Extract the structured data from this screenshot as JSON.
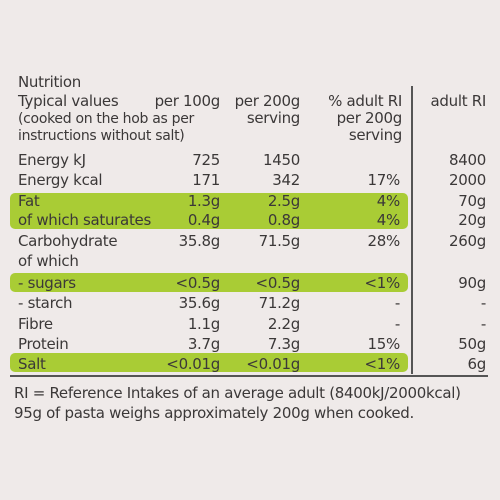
{
  "title": "Nutrition",
  "header": {
    "typical": "Typical values",
    "note1": "(cooked on the hob as per",
    "note2": "instructions without salt)",
    "per100_a": "per 100g",
    "per200_a": "per 200g",
    "per200_b": "serving",
    "ri_a": "% adult RI",
    "ri_b": "per 200g",
    "ri_c": "serving",
    "adult_ri": "adult RI"
  },
  "rows": [
    {
      "label": "Energy kJ",
      "p100": "725",
      "p200": "1450",
      "ri": "",
      "adult": "8400",
      "highlight": false
    },
    {
      "label": "Energy kcal",
      "p100": "171",
      "p200": "342",
      "ri": "17%",
      "adult": "2000",
      "highlight": false
    },
    {
      "label": "Fat",
      "p100": "1.3g",
      "p200": "2.5g",
      "ri": "4%",
      "adult": "70g",
      "highlight": true
    },
    {
      "label": "of which saturates",
      "p100": "0.4g",
      "p200": "0.8g",
      "ri": "4%",
      "adult": "20g",
      "highlight": true
    },
    {
      "label": "Carbohydrate",
      "p100": "35.8g",
      "p200": "71.5g",
      "ri": "28%",
      "adult": "260g",
      "highlight": false
    },
    {
      "label": "of which",
      "p100": "",
      "p200": "",
      "ri": "",
      "adult": "",
      "highlight": false
    },
    {
      "label": "- sugars",
      "p100": "<0.5g",
      "p200": "<0.5g",
      "ri": "<1%",
      "adult": "90g",
      "highlight": true
    },
    {
      "label": "- starch",
      "p100": "35.6g",
      "p200": "71.2g",
      "ri": "-",
      "adult": "-",
      "highlight": false
    },
    {
      "label": "Fibre",
      "p100": "1.1g",
      "p200": "2.2g",
      "ri": "-",
      "adult": "-",
      "highlight": false
    },
    {
      "label": "Protein",
      "p100": "3.7g",
      "p200": "7.3g",
      "ri": "15%",
      "adult": "50g",
      "highlight": false
    },
    {
      "label": "Salt",
      "p100": "<0.01g",
      "p200": "<0.01g",
      "ri": "<1%",
      "adult": "6g",
      "highlight": true
    }
  ],
  "footer": {
    "line1": "RI = Reference Intakes of an average adult (8400kJ/2000kcal)",
    "line2": "95g of pasta weighs approximately 200g when cooked."
  },
  "colors": {
    "highlight": "#a9cc35",
    "background": "#efeae9",
    "text": "#3b3838"
  }
}
